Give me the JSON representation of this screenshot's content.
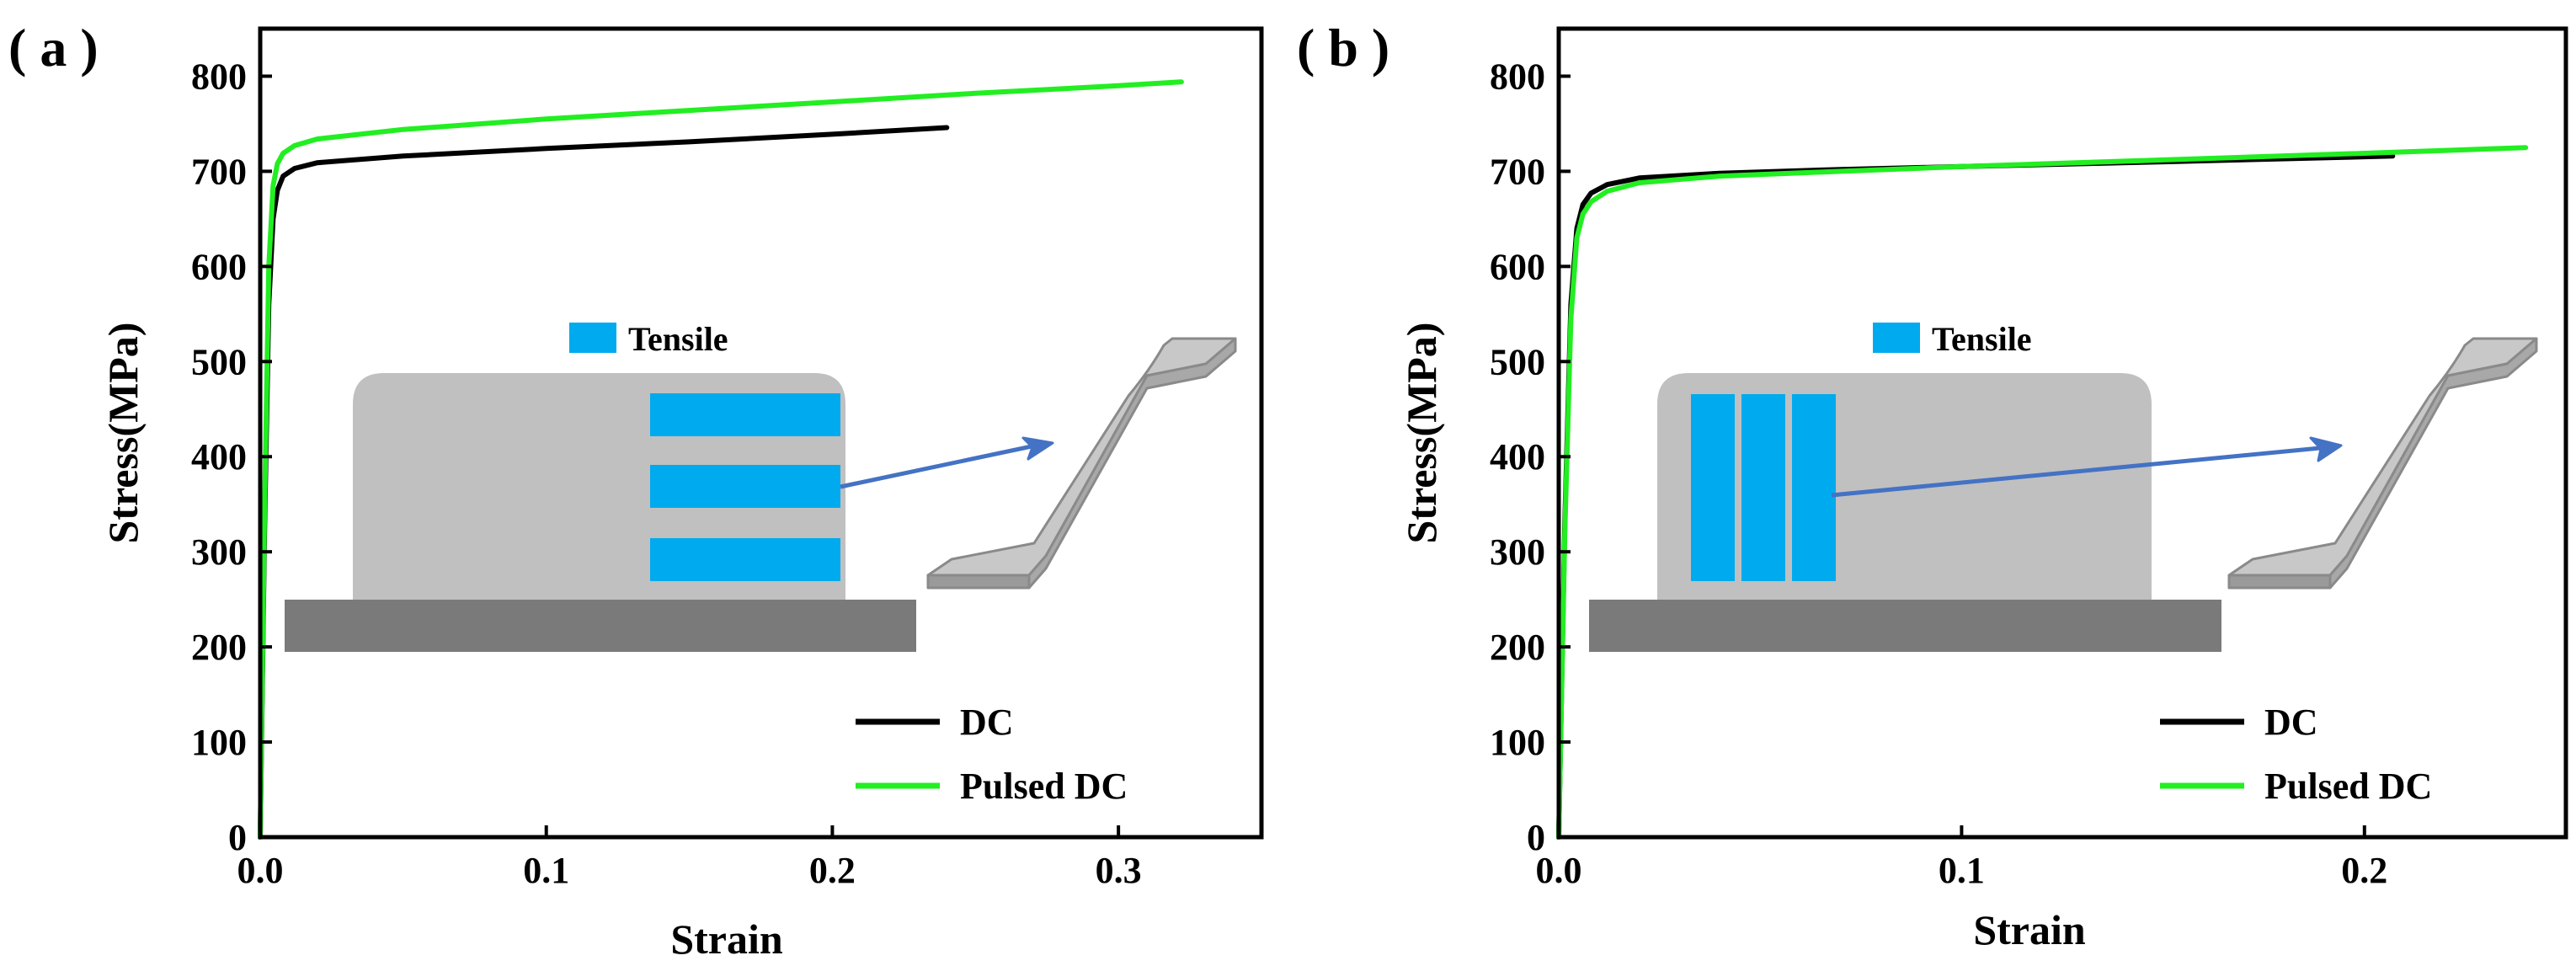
{
  "colors": {
    "dc": "#000000",
    "pulsed_dc": "#22ee22",
    "tensile_fill": "#00aaee",
    "block_fill": "#c0c0c0",
    "substrate_fill": "#7a7a7a",
    "arrow": "#4472c4",
    "specimen_fill": "#c8c8c8",
    "specimen_stroke": "#8a8a8a"
  },
  "chart_data": [
    {
      "type": "line",
      "panel_label": "( a )",
      "xlabel": "Strain",
      "ylabel": "Stress(MPa)",
      "xlim": [
        0,
        0.35
      ],
      "ylim": [
        0,
        850
      ],
      "xticks": [
        0.0,
        0.1,
        0.2,
        0.3
      ],
      "xtick_labels": [
        "0.0",
        "0.1",
        "0.2",
        "0.3"
      ],
      "yticks": [
        0,
        100,
        200,
        300,
        400,
        500,
        600,
        700,
        800
      ],
      "ytick_labels": [
        "0",
        "100",
        "200",
        "300",
        "400",
        "500",
        "600",
        "700",
        "800"
      ],
      "legend_position": "bottom-right",
      "series": [
        {
          "name": "DC",
          "color_key": "dc",
          "points": [
            [
              0,
              0
            ],
            [
              0.0015,
              320
            ],
            [
              0.003,
              560
            ],
            [
              0.0045,
              650
            ],
            [
              0.006,
              680
            ],
            [
              0.008,
              695
            ],
            [
              0.012,
              703
            ],
            [
              0.02,
              709
            ],
            [
              0.05,
              716
            ],
            [
              0.1,
              724
            ],
            [
              0.15,
              731
            ],
            [
              0.2,
              739
            ],
            [
              0.24,
              746
            ]
          ]
        },
        {
          "name": "Pulsed DC",
          "color_key": "pulsed_dc",
          "points": [
            [
              0,
              0
            ],
            [
              0.0015,
              340
            ],
            [
              0.003,
              600
            ],
            [
              0.0045,
              685
            ],
            [
              0.006,
              708
            ],
            [
              0.008,
              719
            ],
            [
              0.012,
              727
            ],
            [
              0.02,
              734
            ],
            [
              0.05,
              744
            ],
            [
              0.1,
              755
            ],
            [
              0.15,
              764
            ],
            [
              0.2,
              773
            ],
            [
              0.25,
              782
            ],
            [
              0.3,
              790
            ],
            [
              0.322,
              794
            ]
          ]
        }
      ],
      "inset": {
        "legend_label": "Tensile",
        "sample_orientation": "horizontal",
        "sample_count": 3
      }
    },
    {
      "type": "line",
      "panel_label": "( b )",
      "xlabel": "Strain",
      "ylabel": "Stress(MPa)",
      "xlim": [
        0,
        0.25
      ],
      "ylim": [
        0,
        850
      ],
      "xticks": [
        0.0,
        0.1,
        0.2
      ],
      "xtick_labels": [
        "0.0",
        "0.1",
        "0.2"
      ],
      "yticks": [
        0,
        100,
        200,
        300,
        400,
        500,
        600,
        700,
        800
      ],
      "ytick_labels": [
        "0",
        "100",
        "200",
        "300",
        "400",
        "500",
        "600",
        "700",
        "800"
      ],
      "legend_position": "bottom-right",
      "series": [
        {
          "name": "DC",
          "color_key": "dc",
          "points": [
            [
              0,
              0
            ],
            [
              0.0015,
              330
            ],
            [
              0.003,
              560
            ],
            [
              0.0045,
              640
            ],
            [
              0.006,
              665
            ],
            [
              0.008,
              677
            ],
            [
              0.012,
              686
            ],
            [
              0.02,
              693
            ],
            [
              0.04,
              698
            ],
            [
              0.07,
              702
            ],
            [
              0.1,
              705
            ],
            [
              0.15,
              710
            ],
            [
              0.207,
              716
            ]
          ]
        },
        {
          "name": "Pulsed DC",
          "color_key": "pulsed_dc",
          "points": [
            [
              0,
              0
            ],
            [
              0.0015,
              320
            ],
            [
              0.003,
              545
            ],
            [
              0.0045,
              630
            ],
            [
              0.006,
              655
            ],
            [
              0.008,
              668
            ],
            [
              0.012,
              679
            ],
            [
              0.02,
              688
            ],
            [
              0.04,
              695
            ],
            [
              0.07,
              700
            ],
            [
              0.1,
              705
            ],
            [
              0.15,
              712
            ],
            [
              0.2,
              719
            ],
            [
              0.24,
              725
            ]
          ]
        }
      ],
      "inset": {
        "legend_label": "Tensile",
        "sample_orientation": "vertical",
        "sample_count": 3
      }
    }
  ]
}
